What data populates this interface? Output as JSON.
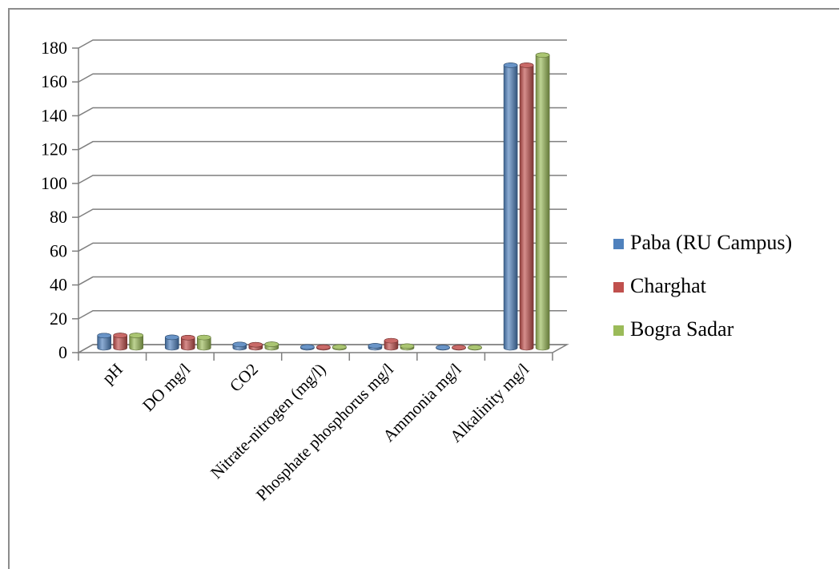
{
  "chart_data": {
    "type": "bar",
    "title": "",
    "xlabel": "",
    "ylabel": "",
    "ylim": [
      0,
      180
    ],
    "yticks": [
      0,
      20,
      40,
      60,
      80,
      100,
      120,
      140,
      160,
      180
    ],
    "categories": [
      "pH",
      "DO mg/l",
      "CO2",
      "Nitrate-nitrogen (mg/l)",
      "Phosphate phosphorus mg/l",
      "Ammonia mg/l",
      "Alkalinity mg/l"
    ],
    "series": [
      {
        "name": "Paba (RU Campus)",
        "color": "#4f81bd",
        "values": [
          7.2,
          6.2,
          2.0,
          0.5,
          1.2,
          0.2,
          167
        ]
      },
      {
        "name": "Charghat",
        "color": "#c0504d",
        "values": [
          7.3,
          6.0,
          1.8,
          0.4,
          4.2,
          0.2,
          167
        ]
      },
      {
        "name": "Bogra Sadar",
        "color": "#9bbb59",
        "values": [
          7.3,
          6.1,
          2.1,
          0.5,
          1.0,
          0.2,
          173
        ]
      }
    ],
    "grid": true,
    "legend": "right",
    "style": "3d-cylinder"
  }
}
